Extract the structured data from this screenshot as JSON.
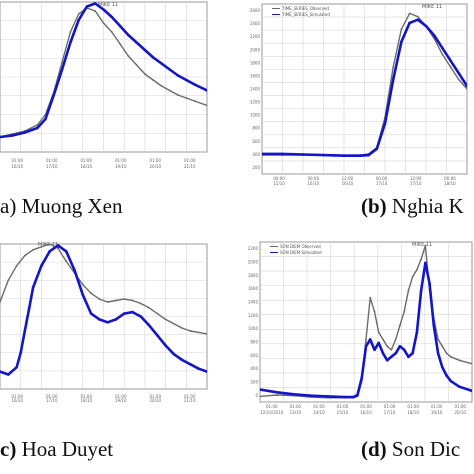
{
  "colors": {
    "observed": "#6b6b6b",
    "simulated": "#1414c8",
    "grid": "#d6d6d6",
    "frame": "#9a9a9a"
  },
  "chart_data": [
    {
      "type": "line",
      "caption_tag": "a)",
      "caption": "Muong Xen",
      "header": "MIKE 11",
      "x_ticks": [
        "01:00\n16/10",
        "01:00\n17/10",
        "01:00\n18/10",
        "01:00\n19/10",
        "01:00\n20/10",
        "01:00\n21/10"
      ],
      "xlim": [
        0,
        100
      ],
      "ylim": [
        0,
        100
      ],
      "series": [
        {
          "role": "observed",
          "x": [
            0,
            6,
            12,
            18,
            22,
            26,
            30,
            34,
            38,
            42,
            46,
            50,
            54,
            58,
            62,
            66,
            70,
            74,
            78,
            82,
            86,
            90,
            94,
            100
          ],
          "y": [
            10,
            12,
            14,
            18,
            25,
            40,
            60,
            80,
            92,
            96,
            94,
            86,
            80,
            72,
            64,
            58,
            52,
            48,
            44,
            41,
            38,
            36,
            34,
            31
          ]
        },
        {
          "role": "simulated",
          "x": [
            0,
            6,
            12,
            18,
            22,
            26,
            30,
            34,
            38,
            42,
            46,
            50,
            54,
            58,
            62,
            66,
            70,
            74,
            78,
            82,
            86,
            90,
            94,
            100
          ],
          "y": [
            10,
            11,
            13,
            16,
            22,
            38,
            55,
            73,
            88,
            97,
            99,
            95,
            90,
            84,
            78,
            73,
            68,
            63,
            59,
            55,
            51,
            48,
            45,
            41
          ]
        }
      ]
    },
    {
      "type": "line",
      "caption_tag": "(b)",
      "caption": "Nghia K",
      "header": "MIKE 11",
      "legend": [
        "TIME_SERIES_Observed",
        "TIME_SERIES_Simulated"
      ],
      "y_ticks": [
        "2600",
        "2400",
        "2200",
        "2000",
        "1800",
        "1600",
        "1400",
        "1200",
        "1000",
        "800",
        "600",
        "400",
        "200"
      ],
      "x_ticks": [
        "00:00\n15/10",
        "00:00\n16/10",
        "12:00\n16/10",
        "00:00\n17/10",
        "12:00\n17/10",
        "00:00\n18/10"
      ],
      "xlim": [
        0,
        100
      ],
      "ylim": [
        0,
        2700
      ],
      "series": [
        {
          "role": "observed",
          "x": [
            0,
            10,
            20,
            30,
            40,
            48,
            52,
            56,
            60,
            64,
            68,
            72,
            76,
            80,
            84,
            88,
            92,
            96,
            100
          ],
          "y": [
            300,
            300,
            300,
            300,
            300,
            300,
            320,
            420,
            900,
            1700,
            2300,
            2550,
            2500,
            2350,
            2150,
            1900,
            1700,
            1500,
            1350
          ]
        },
        {
          "role": "simulated",
          "x": [
            0,
            10,
            20,
            30,
            40,
            48,
            52,
            56,
            60,
            64,
            68,
            72,
            76,
            80,
            84,
            88,
            92,
            96,
            100
          ],
          "y": [
            320,
            320,
            310,
            300,
            290,
            290,
            300,
            400,
            800,
            1500,
            2100,
            2400,
            2450,
            2350,
            2200,
            2000,
            1800,
            1600,
            1400
          ]
        }
      ]
    },
    {
      "type": "line",
      "caption_tag": "c)",
      "caption": "Hoa Duyet",
      "header": "MIKE 11",
      "x_ticks": [
        "01:00\n16/10",
        "01:00\n17/10",
        "01:00\n18/10",
        "01:00\n19/10",
        "01:00\n20/10",
        "01:00\n21/10"
      ],
      "xlim": [
        0,
        100
      ],
      "ylim": [
        0,
        100
      ],
      "series": [
        {
          "role": "observed",
          "x": [
            0,
            4,
            8,
            12,
            16,
            20,
            24,
            28,
            32,
            36,
            40,
            44,
            48,
            52,
            56,
            60,
            64,
            68,
            72,
            76,
            80,
            84,
            88,
            92,
            96,
            100
          ],
          "y": [
            60,
            75,
            85,
            92,
            96,
            98,
            100,
            97,
            88,
            80,
            72,
            66,
            62,
            60,
            61,
            62,
            61,
            59,
            56,
            52,
            48,
            45,
            42,
            40,
            39,
            38
          ]
        },
        {
          "role": "simulated",
          "x": [
            0,
            4,
            8,
            10,
            12,
            14,
            16,
            20,
            24,
            28,
            32,
            36,
            40,
            44,
            48,
            52,
            56,
            60,
            64,
            68,
            72,
            76,
            80,
            84,
            88,
            92,
            96,
            100
          ],
          "y": [
            12,
            10,
            15,
            25,
            40,
            55,
            70,
            85,
            95,
            99,
            95,
            82,
            65,
            52,
            48,
            46,
            48,
            52,
            53,
            50,
            44,
            37,
            30,
            24,
            20,
            17,
            14,
            12
          ]
        }
      ]
    },
    {
      "type": "line",
      "caption_tag": "(d)",
      "caption": "Son Dic",
      "header": "MIKE 11",
      "legend": [
        "SON DIEM Observed",
        "SON DIEM Simulated"
      ],
      "y_ticks": [
        "2200",
        "2000",
        "1800",
        "1600",
        "1400",
        "1200",
        "1000",
        "800",
        "600",
        "400",
        "200",
        "0"
      ],
      "x_ticks": [
        "01:00\n12/10/2010",
        "01:00\n13/10",
        "01:00\n14/10",
        "01:00\n15/10",
        "01:00\n16/10",
        "01:00\n17/10",
        "01:00\n18/10",
        "01:00\n19/10",
        "01:00\n20/10"
      ],
      "xlim": [
        0,
        100
      ],
      "ylim": [
        0,
        2300
      ],
      "series": [
        {
          "role": "observed",
          "x": [
            0,
            8,
            16,
            24,
            32,
            40,
            44,
            46,
            48,
            50,
            52,
            54,
            56,
            58,
            60,
            62,
            64,
            66,
            68,
            70,
            72,
            74,
            76,
            78,
            80,
            82,
            84,
            86,
            88,
            90,
            94,
            100
          ],
          "y": [
            80,
            100,
            90,
            70,
            60,
            60,
            60,
            80,
            300,
            900,
            1500,
            1300,
            1000,
            900,
            800,
            750,
            900,
            1100,
            1300,
            1600,
            1800,
            1900,
            2050,
            2250,
            1600,
            1200,
            900,
            800,
            700,
            650,
            600,
            550
          ]
        },
        {
          "role": "simulated",
          "x": [
            0,
            8,
            16,
            24,
            32,
            40,
            44,
            46,
            48,
            50,
            52,
            54,
            56,
            58,
            60,
            62,
            64,
            66,
            68,
            70,
            72,
            74,
            76,
            78,
            80,
            82,
            84,
            86,
            88,
            90,
            94,
            100
          ],
          "y": [
            180,
            140,
            110,
            90,
            80,
            70,
            70,
            100,
            350,
            800,
            900,
            750,
            850,
            700,
            600,
            650,
            700,
            800,
            750,
            650,
            700,
            1000,
            1600,
            2000,
            1700,
            1100,
            700,
            500,
            380,
            300,
            220,
            160
          ]
        }
      ]
    }
  ]
}
